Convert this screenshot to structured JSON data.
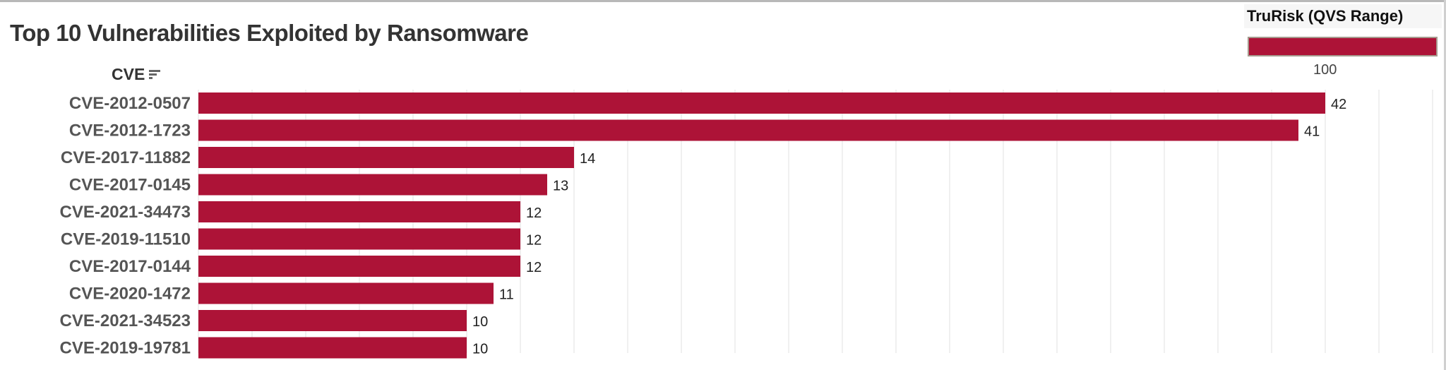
{
  "title": "Top 10 Vulnerabilities Exploited by Ransomware",
  "legend": {
    "title": "TruRisk (QVS Range)",
    "value": "100",
    "color": "#ad1337"
  },
  "chart_data": {
    "type": "bar",
    "orientation": "horizontal",
    "title": "Top 10 Vulnerabilities Exploited by Ransomware",
    "ylabel": "CVE",
    "xlabel": "",
    "categories": [
      "CVE-2012-0507",
      "CVE-2012-1723",
      "CVE-2017-11882",
      "CVE-2017-0145",
      "CVE-2021-34473",
      "CVE-2019-11510",
      "CVE-2017-0144",
      "CVE-2020-1472",
      "CVE-2021-34523",
      "CVE-2019-19781"
    ],
    "values": [
      42,
      41,
      14,
      13,
      12,
      12,
      12,
      11,
      10,
      10
    ],
    "xlim": [
      0,
      46
    ],
    "grid": true,
    "sorted": "descending",
    "bar_color": "#ad1337",
    "legend_placement": "top-right"
  }
}
